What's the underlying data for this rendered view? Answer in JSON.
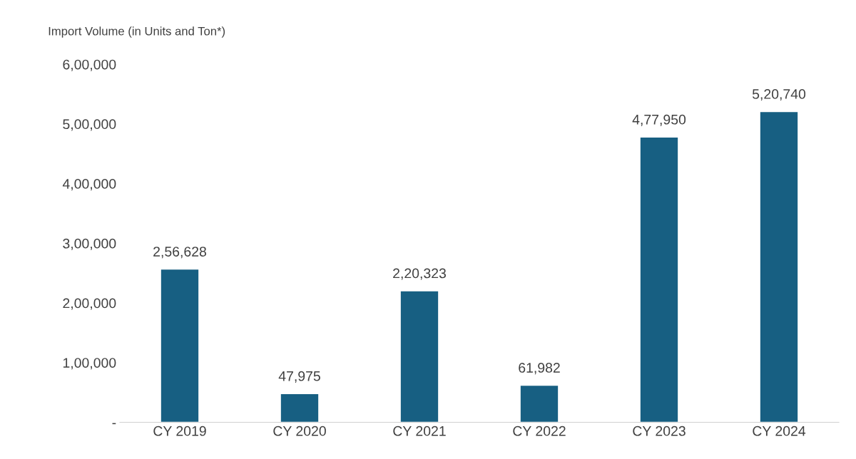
{
  "chart_data": {
    "type": "bar",
    "ylabel": "Import Volume (in Units and Ton*)",
    "categories": [
      "CY 2019",
      "CY 2020",
      "CY 2021",
      "CY 2022",
      "CY 2023",
      "CY 2024"
    ],
    "values": [
      256628,
      47975,
      220323,
      61982,
      477950,
      520740
    ],
    "value_labels": [
      "2,56,628",
      "47,975",
      "2,20,323",
      "61,982",
      "4,77,950",
      "5,20,740"
    ],
    "color": "#175f82",
    "ylim": [
      0,
      600000
    ],
    "yticks": [
      {
        "value": 0,
        "label": "-"
      },
      {
        "value": 100000,
        "label": "1,00,000"
      },
      {
        "value": 200000,
        "label": "2,00,000"
      },
      {
        "value": 300000,
        "label": "3,00,000"
      },
      {
        "value": 400000,
        "label": "4,00,000"
      },
      {
        "value": 500000,
        "label": "5,00,000"
      },
      {
        "value": 600000,
        "label": "6,00,000"
      }
    ],
    "grid": false,
    "legend": false
  }
}
